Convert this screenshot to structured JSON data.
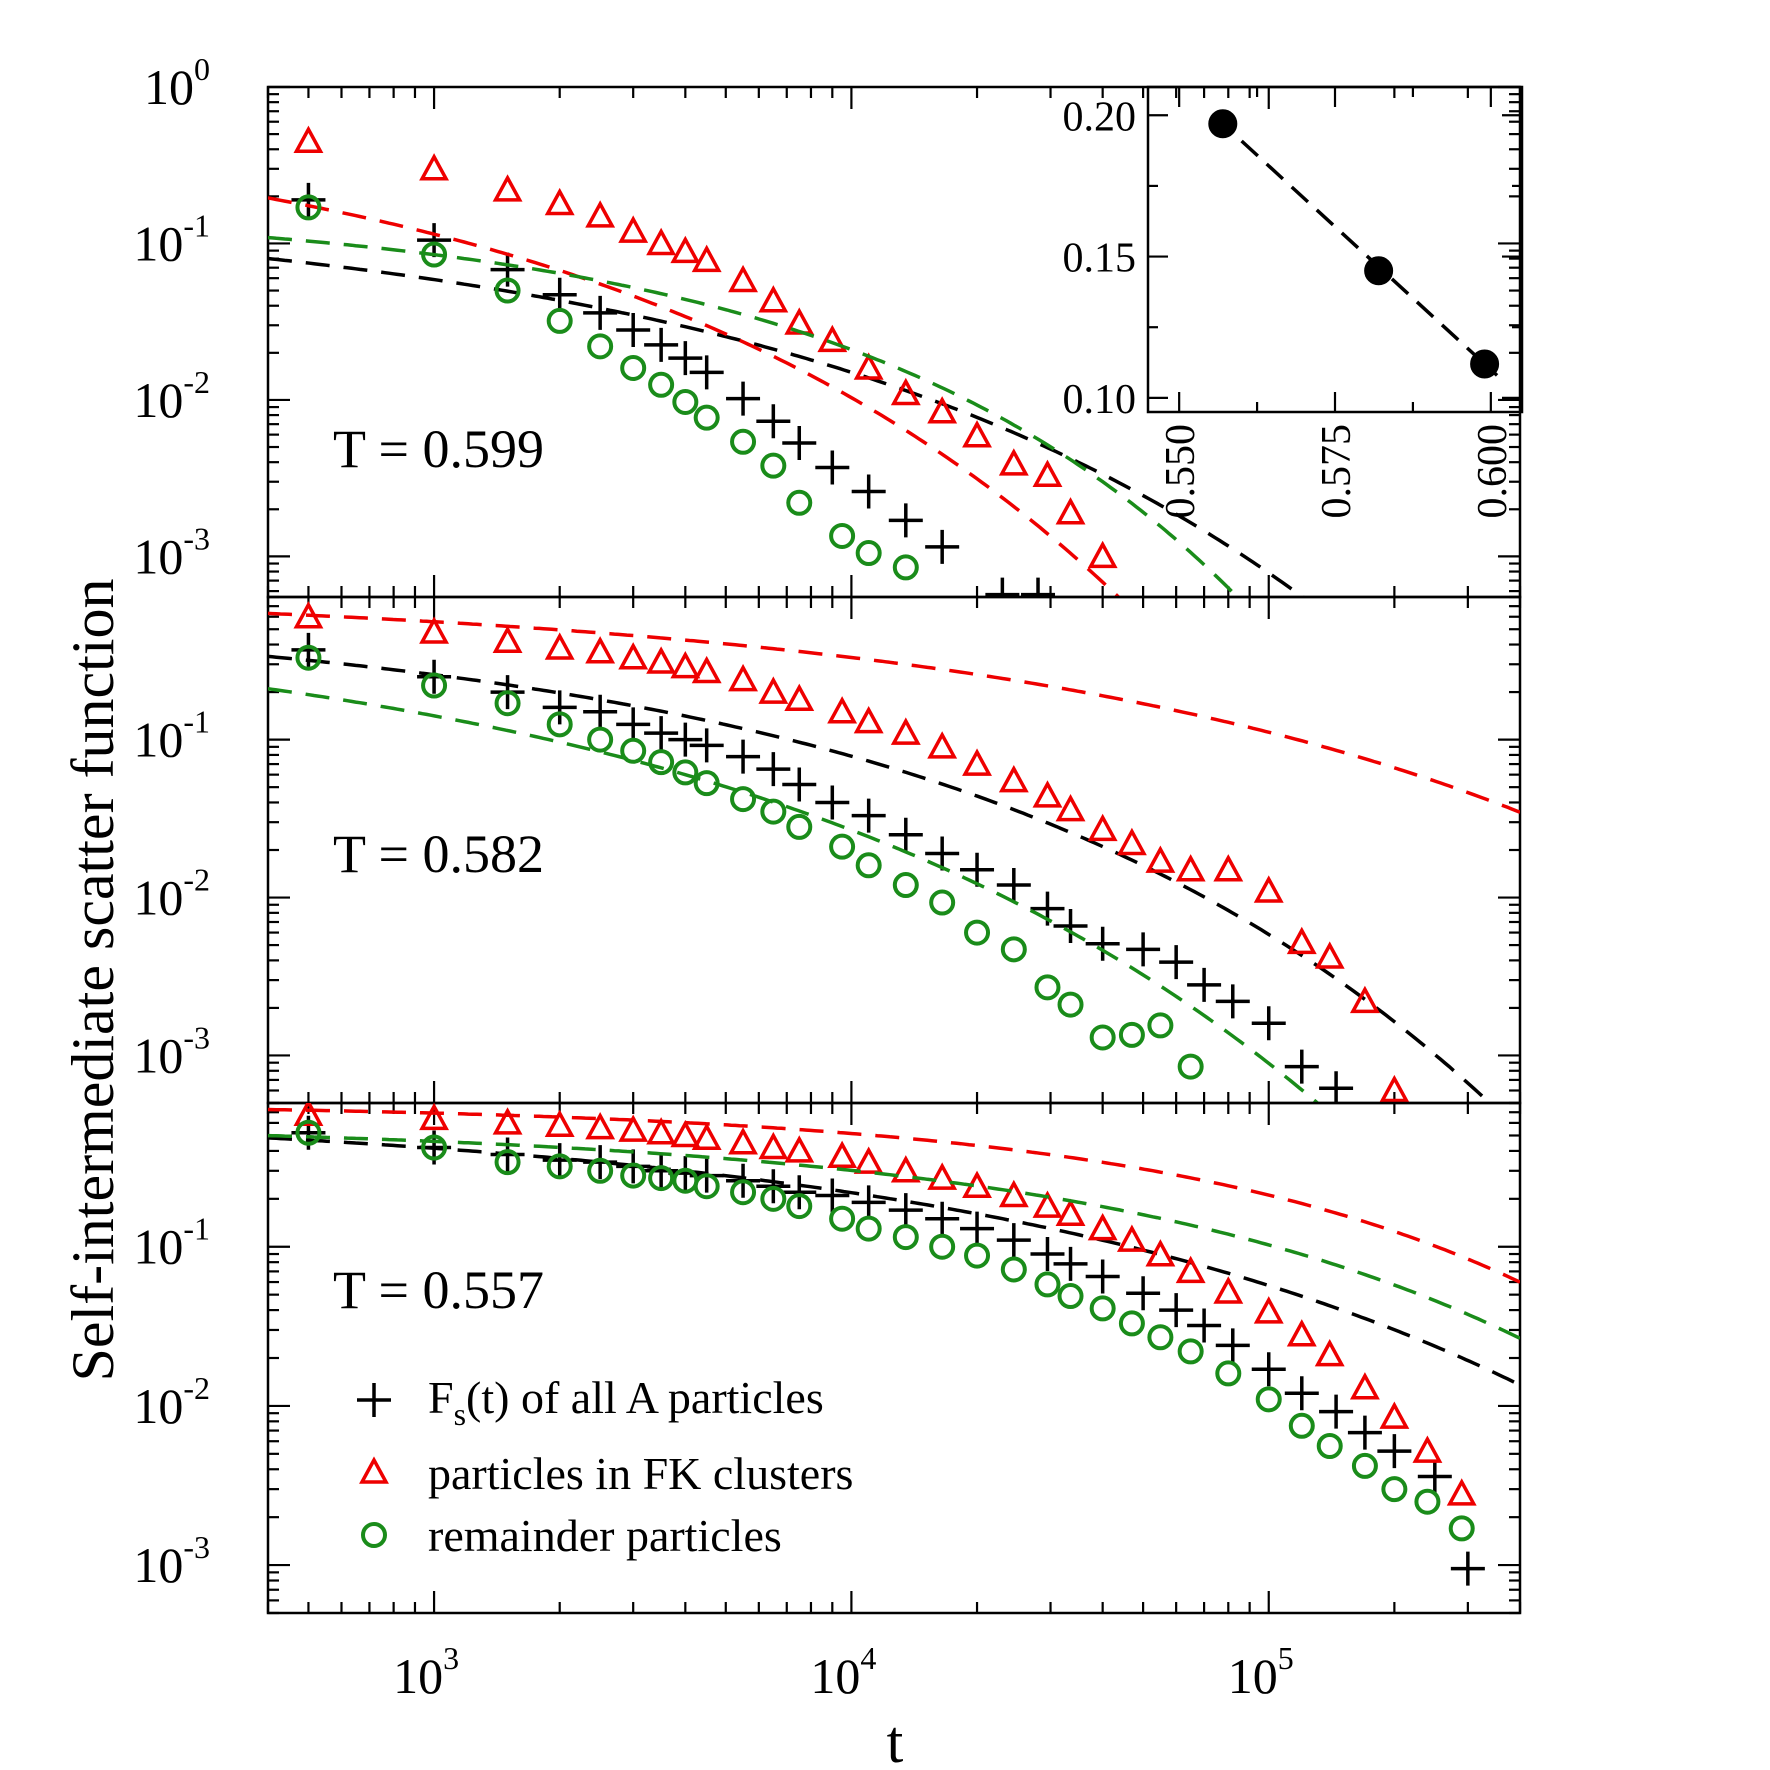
{
  "colors": {
    "all": "#000000",
    "fk": "#ee0000",
    "remainder": "#1a8c1a",
    "inset": "#000000"
  },
  "xlabel": "t",
  "ylabel": "Self-intermediate scatter function",
  "legend": {
    "all": "F",
    "all_sub": "s",
    "all_rest": "(t) of all A particles",
    "fk": "particles in FK clusters",
    "remainder": "remainder particles"
  },
  "chart_data": [
    {
      "type": "scatter",
      "panel": "top",
      "title": "T = 0.599",
      "xscale": "log",
      "yscale": "log",
      "xlim": [
        400,
        400000
      ],
      "ylim": [
        0.00055,
        1
      ],
      "xticks": [
        {
          "base": "10",
          "exp": "3"
        },
        {
          "base": "10",
          "exp": "4"
        },
        {
          "base": "10",
          "exp": "5"
        }
      ],
      "yticks": [
        {
          "value": 1,
          "base": "10",
          "exp": "0"
        },
        {
          "value": 0.1,
          "base": "10",
          "exp": "-1"
        },
        {
          "value": 0.01,
          "base": "10",
          "exp": "-2"
        },
        {
          "value": 0.001,
          "base": "10",
          "exp": "-3"
        }
      ],
      "series": [
        {
          "name": "F_s(t) of all A particles",
          "marker": "plus",
          "color": "#000000",
          "x": [
            500,
            1000,
            1500,
            2000,
            2500,
            3000,
            3500,
            4000,
            4500,
            5500,
            6500,
            7500,
            9000,
            11000,
            13500,
            16500,
            23000,
            28000
          ],
          "y": [
            0.19,
            0.105,
            0.068,
            0.047,
            0.036,
            0.028,
            0.0225,
            0.0185,
            0.015,
            0.0102,
            0.0073,
            0.0053,
            0.0037,
            0.0026,
            0.0017,
            0.00115,
            0.00057,
            0.00057
          ],
          "fit": {
            "a": 0.19,
            "tau": 620,
            "beta": 0.335
          }
        },
        {
          "name": "particles in FK clusters",
          "marker": "triangle",
          "color": "#ee0000",
          "x": [
            500,
            1000,
            1500,
            2000,
            2500,
            3000,
            3500,
            4000,
            4500,
            5500,
            6500,
            7500,
            9000,
            11000,
            13500,
            16500,
            20000,
            24500,
            29500,
            33500,
            40000
          ],
          "y": [
            0.45,
            0.3,
            0.22,
            0.18,
            0.15,
            0.12,
            0.1,
            0.089,
            0.078,
            0.058,
            0.043,
            0.031,
            0.024,
            0.016,
            0.011,
            0.0084,
            0.0059,
            0.0039,
            0.0033,
            0.0019,
            0.001
          ],
          "fit": {
            "a": 0.8,
            "tau": 150,
            "beta": 0.35
          }
        },
        {
          "name": "remainder particles",
          "marker": "circle",
          "color": "#1a8c1a",
          "x": [
            500,
            1000,
            1500,
            2000,
            2500,
            3000,
            3500,
            4000,
            4500,
            5500,
            6500,
            7500,
            9500,
            11000,
            13500
          ],
          "y": [
            0.17,
            0.085,
            0.05,
            0.032,
            0.022,
            0.016,
            0.0125,
            0.0097,
            0.0077,
            0.0054,
            0.0038,
            0.0022,
            0.00135,
            0.00105,
            0.00085
          ],
          "fit": {
            "a": 0.1738,
            "tau": 2030,
            "beta": 0.47
          }
        }
      ]
    },
    {
      "type": "scatter",
      "panel": "middle",
      "title": "T = 0.582",
      "xscale": "log",
      "yscale": "log",
      "xlim": [
        400,
        400000
      ],
      "ylim": [
        0.0005,
        0.8
      ],
      "xticks": [],
      "yticks": [
        {
          "value": 0.1,
          "base": "10",
          "exp": "-1"
        },
        {
          "value": 0.01,
          "base": "10",
          "exp": "-2"
        },
        {
          "value": 0.001,
          "base": "10",
          "exp": "-3"
        }
      ],
      "series": [
        {
          "name": "F_s(t) of all A particles",
          "marker": "plus",
          "color": "#000000",
          "x": [
            500,
            1000,
            1500,
            2000,
            2500,
            3000,
            3500,
            4000,
            4500,
            5500,
            6500,
            7500,
            9000,
            11000,
            13500,
            16500,
            20000,
            24500,
            29500,
            33500,
            40000,
            50000,
            60000,
            70000,
            82000,
            100000,
            120000,
            145000
          ],
          "y": [
            0.37,
            0.25,
            0.2,
            0.16,
            0.15,
            0.125,
            0.11,
            0.1,
            0.092,
            0.078,
            0.065,
            0.052,
            0.04,
            0.033,
            0.025,
            0.019,
            0.015,
            0.012,
            0.0085,
            0.0066,
            0.0051,
            0.0047,
            0.0039,
            0.0028,
            0.0022,
            0.0016,
            0.00085,
            0.00062
          ],
          "fit": {
            "a": 0.7,
            "tau": 1000,
            "beta": 0.34
          }
        },
        {
          "name": "particles in FK clusters",
          "marker": "triangle",
          "color": "#ee0000",
          "x": [
            500,
            1000,
            1500,
            2000,
            2500,
            3000,
            3500,
            4000,
            4500,
            5500,
            6500,
            7500,
            9500,
            11000,
            13500,
            16500,
            20000,
            24500,
            29500,
            33500,
            40000,
            47000,
            55000,
            65000,
            80000,
            100000,
            120000,
            140000,
            170000,
            200000
          ],
          "y": [
            0.6,
            0.48,
            0.42,
            0.38,
            0.36,
            0.33,
            0.31,
            0.29,
            0.27,
            0.24,
            0.2,
            0.18,
            0.15,
            0.13,
            0.11,
            0.09,
            0.07,
            0.055,
            0.044,
            0.036,
            0.027,
            0.022,
            0.017,
            0.015,
            0.015,
            0.011,
            0.0052,
            0.0042,
            0.0022,
            0.0006
          ],
          "fit": {
            "a": 0.9,
            "tau": 10000,
            "beta": 0.32
          }
        },
        {
          "name": "remainder particles",
          "marker": "circle",
          "color": "#1a8c1a",
          "x": [
            500,
            1000,
            1500,
            2000,
            2500,
            3000,
            3500,
            4000,
            4500,
            5500,
            6500,
            7500,
            9500,
            11000,
            13500,
            16500,
            20000,
            24500,
            29500,
            33500,
            40000,
            47000,
            55000,
            65000
          ],
          "y": [
            0.33,
            0.22,
            0.17,
            0.125,
            0.1,
            0.085,
            0.072,
            0.062,
            0.053,
            0.042,
            0.035,
            0.028,
            0.021,
            0.016,
            0.012,
            0.0093,
            0.006,
            0.0047,
            0.0027,
            0.0021,
            0.0013,
            0.00135,
            0.00155,
            0.00085
          ],
          "fit": {
            "a": 0.7,
            "tau": 220,
            "beta": 0.31
          }
        }
      ]
    },
    {
      "type": "scatter",
      "panel": "bottom",
      "title": "T = 0.557",
      "xscale": "log",
      "yscale": "log",
      "xlim": [
        400,
        400000
      ],
      "ylim": [
        0.0005,
        0.8
      ],
      "xticks": [
        {
          "base": "10",
          "exp": "3"
        },
        {
          "base": "10",
          "exp": "4"
        },
        {
          "base": "10",
          "exp": "5"
        }
      ],
      "yticks": [
        {
          "value": 0.1,
          "base": "10",
          "exp": "-1"
        },
        {
          "value": 0.01,
          "base": "10",
          "exp": "-2"
        },
        {
          "value": 0.001,
          "base": "10",
          "exp": "-3"
        }
      ],
      "series": [
        {
          "name": "F_s(t) of all A particles",
          "marker": "plus",
          "color": "#000000",
          "x": [
            500,
            1000,
            1500,
            2000,
            2500,
            3000,
            3500,
            4000,
            4500,
            5500,
            6500,
            7500,
            9000,
            11000,
            13500,
            16500,
            20000,
            24500,
            29500,
            33500,
            40000,
            50000,
            60000,
            70000,
            82000,
            100000,
            120000,
            145000,
            170000,
            200000,
            250000,
            300000
          ],
          "y": [
            0.52,
            0.42,
            0.38,
            0.35,
            0.34,
            0.32,
            0.3,
            0.29,
            0.28,
            0.26,
            0.24,
            0.22,
            0.21,
            0.19,
            0.17,
            0.15,
            0.13,
            0.11,
            0.09,
            0.078,
            0.065,
            0.051,
            0.04,
            0.032,
            0.024,
            0.017,
            0.012,
            0.0092,
            0.0068,
            0.0052,
            0.0036,
            0.00095
          ],
          "fit": {
            "a": 0.75,
            "tau": 5200,
            "beta": 0.32
          }
        },
        {
          "name": "particles in FK clusters",
          "marker": "triangle",
          "color": "#ee0000",
          "x": [
            500,
            1000,
            1500,
            2000,
            2500,
            3000,
            3500,
            4000,
            4500,
            5500,
            6500,
            7500,
            9500,
            11000,
            13500,
            16500,
            20000,
            24500,
            29500,
            33500,
            40000,
            47000,
            55000,
            65000,
            80000,
            100000,
            120000,
            140000,
            170000,
            200000,
            240000,
            290000
          ],
          "y": [
            0.68,
            0.64,
            0.6,
            0.58,
            0.56,
            0.54,
            0.52,
            0.5,
            0.48,
            0.45,
            0.42,
            0.4,
            0.37,
            0.34,
            0.3,
            0.27,
            0.24,
            0.21,
            0.18,
            0.16,
            0.13,
            0.11,
            0.089,
            0.07,
            0.052,
            0.039,
            0.028,
            0.021,
            0.013,
            0.0085,
            0.0052,
            0.0028
          ],
          "fit": {
            "a": 0.8,
            "tau": 55000,
            "beta": 0.48
          }
        },
        {
          "name": "remainder particles",
          "marker": "circle",
          "color": "#1a8c1a",
          "x": [
            500,
            1000,
            1500,
            2000,
            2500,
            3000,
            3500,
            4000,
            4500,
            5500,
            6500,
            7500,
            9500,
            11000,
            13500,
            16500,
            20000,
            24500,
            29500,
            33500,
            40000,
            47000,
            55000,
            65000,
            80000,
            100000,
            120000,
            140000,
            170000,
            200000,
            240000,
            290000
          ],
          "y": [
            0.52,
            0.42,
            0.34,
            0.32,
            0.3,
            0.28,
            0.27,
            0.26,
            0.24,
            0.22,
            0.2,
            0.18,
            0.15,
            0.13,
            0.115,
            0.1,
            0.088,
            0.072,
            0.058,
            0.049,
            0.041,
            0.033,
            0.027,
            0.022,
            0.016,
            0.011,
            0.0075,
            0.0056,
            0.0042,
            0.003,
            0.0025,
            0.0017
          ],
          "fit": {
            "a": 0.6,
            "tau": 25000,
            "beta": 0.41
          }
        }
      ]
    },
    {
      "type": "line",
      "panel": "inset",
      "xlim": [
        0.545,
        0.605
      ],
      "ylim": [
        0.095,
        0.21
      ],
      "xticks": [
        0.55,
        0.575,
        0.6
      ],
      "xtick_labels": [
        "0.550",
        "0.575",
        "0.600"
      ],
      "yticks": [
        0.1,
        0.15,
        0.2
      ],
      "ytick_labels": [
        "0.10",
        "0.15",
        "0.20"
      ],
      "x": [
        0.557,
        0.582,
        0.599
      ],
      "y": [
        0.197,
        0.145,
        0.112
      ],
      "line_style": "dashed",
      "marker": "filled-circle"
    }
  ]
}
